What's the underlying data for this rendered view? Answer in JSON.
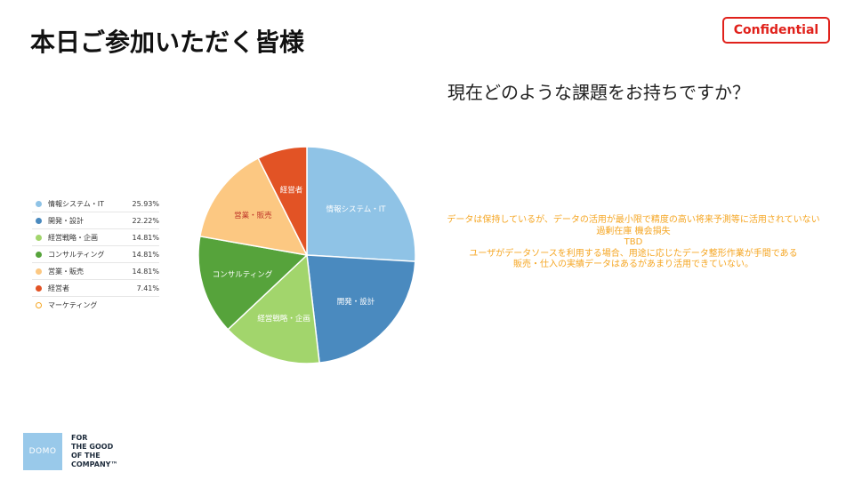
{
  "page": {
    "title": "本日ご参加いただく皆様",
    "confidential": "Confidential",
    "question": "現在どのような課題をお持ちですか？"
  },
  "chart_data": {
    "type": "pie",
    "title": "",
    "slices": [
      {
        "label": "情報システム・IT",
        "value": 25.93,
        "display": "25.93%",
        "color": "#8fc3e6",
        "label_dark": false
      },
      {
        "label": "開発・設計",
        "value": 22.22,
        "display": "22.22%",
        "color": "#4a8abf",
        "label_dark": false
      },
      {
        "label": "経営戦略・企画",
        "value": 14.81,
        "display": "14.81%",
        "color": "#a2d56c",
        "label_dark": false
      },
      {
        "label": "コンサルティング",
        "value": 14.81,
        "display": "14.81%",
        "color": "#56a33b",
        "label_dark": false
      },
      {
        "label": "営業・販売",
        "value": 14.81,
        "display": "14.81%",
        "color": "#fcc882",
        "label_dark": true
      },
      {
        "label": "経営者",
        "value": 7.41,
        "display": "7.41%",
        "color": "#e25325",
        "label_dark": false
      }
    ],
    "legend_extra": {
      "label": "マーケティング",
      "color": "#f5a623",
      "hollow": true
    },
    "legend_position": "left"
  },
  "comments": [
    "データは保持しているが、データの活用が最小限で精度の高い将来予測等に活用されていない",
    "過剰在庫 機会損失",
    "TBD",
    "ユーザがデータソースを利用する場合、用途に応じたデータ整形作業が手間である",
    "販売・仕入の実績データはあるがあまり活用できていない。"
  ],
  "logo": {
    "mark": "DOMO",
    "lines": [
      "FOR",
      "THE GOOD",
      "OF THE",
      "COMPANY™"
    ],
    "color": "#99c9ea"
  }
}
